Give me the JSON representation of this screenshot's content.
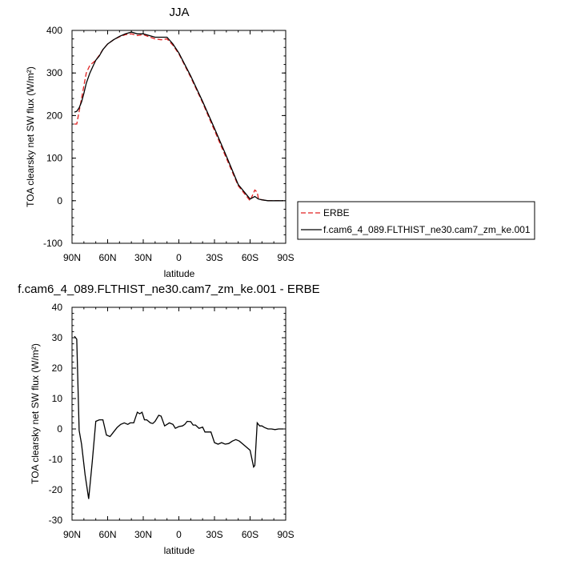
{
  "chart_data": [
    {
      "type": "line",
      "title": "JJA",
      "xlabel": "latitude",
      "ylabel": "TOA clearsky net SW flux (W/m²)",
      "xlim": [
        90,
        -90
      ],
      "ylim": [
        -100,
        400
      ],
      "xticks": [
        {
          "value": 90,
          "label": "90N"
        },
        {
          "value": 60,
          "label": "60N"
        },
        {
          "value": 30,
          "label": "30N"
        },
        {
          "value": 0,
          "label": "0"
        },
        {
          "value": -30,
          "label": "30S"
        },
        {
          "value": -60,
          "label": "60S"
        },
        {
          "value": -90,
          "label": "90S"
        }
      ],
      "yticks": [
        {
          "value": 400,
          "label": "400"
        },
        {
          "value": 300,
          "label": "300"
        },
        {
          "value": 200,
          "label": "200"
        },
        {
          "value": 100,
          "label": "100"
        },
        {
          "value": 0,
          "label": "0"
        },
        {
          "value": -100,
          "label": "-100"
        }
      ],
      "legend_position": "right",
      "series": [
        {
          "name": "ERBE",
          "color": "#e02020",
          "dash": "dashed",
          "x": [
            88,
            86,
            84,
            82,
            80,
            78,
            75,
            72,
            70,
            67,
            64,
            60,
            55,
            50,
            45,
            40,
            35,
            30,
            25,
            20,
            15,
            10,
            5,
            0,
            -10,
            -20,
            -30,
            -40,
            -50,
            -60,
            -64,
            -66,
            -67,
            -70,
            -75,
            -80,
            -85,
            -88
          ],
          "y": [
            180,
            180,
            210,
            240,
            270,
            300,
            318,
            325,
            330,
            342,
            355,
            368,
            378,
            385,
            390,
            392,
            388,
            390,
            385,
            380,
            378,
            380,
            365,
            345,
            290,
            230,
            165,
            100,
            35,
            0,
            25,
            20,
            5,
            2,
            0,
            0,
            0,
            0
          ]
        },
        {
          "name": "f.cam6_4_089.FLTHIST_ne30.cam7_zm_ke.001",
          "color": "#000000",
          "dash": "solid",
          "x": [
            88,
            86,
            84,
            82,
            80,
            78,
            75,
            72,
            70,
            67,
            64,
            60,
            55,
            50,
            45,
            40,
            35,
            30,
            25,
            20,
            15,
            10,
            5,
            0,
            -10,
            -20,
            -30,
            -40,
            -50,
            -60,
            -64,
            -66,
            -67,
            -70,
            -75,
            -80,
            -85,
            -88
          ],
          "y": [
            208,
            210,
            218,
            232,
            252,
            276,
            300,
            318,
            330,
            340,
            355,
            368,
            378,
            386,
            392,
            396,
            392,
            392,
            388,
            384,
            384,
            384,
            368,
            347,
            293,
            233,
            170,
            105,
            38,
            4,
            10,
            6,
            4,
            2,
            0,
            0,
            0,
            0
          ]
        }
      ]
    },
    {
      "type": "line",
      "title": "f.cam6_4_089.FLTHIST_ne30.cam7_zm_ke.001 - ERBE",
      "xlabel": "latitude",
      "ylabel": "TOA clearsky net SW flux (W/m²)",
      "xlim": [
        90,
        -90
      ],
      "ylim": [
        -30,
        40
      ],
      "xticks": [
        {
          "value": 90,
          "label": "90N"
        },
        {
          "value": 60,
          "label": "60N"
        },
        {
          "value": 30,
          "label": "30N"
        },
        {
          "value": 0,
          "label": "0"
        },
        {
          "value": -30,
          "label": "30S"
        },
        {
          "value": -60,
          "label": "60S"
        },
        {
          "value": -90,
          "label": "90S"
        }
      ],
      "yticks": [
        {
          "value": 40,
          "label": "40"
        },
        {
          "value": 30,
          "label": "30"
        },
        {
          "value": 20,
          "label": "20"
        },
        {
          "value": 10,
          "label": "10"
        },
        {
          "value": 0,
          "label": "0"
        },
        {
          "value": -10,
          "label": "-10"
        },
        {
          "value": -20,
          "label": "-20"
        },
        {
          "value": -30,
          "label": "-30"
        }
      ],
      "series": [
        {
          "color": "#000000",
          "dash": "solid",
          "x": [
            88,
            86,
            84,
            82,
            79,
            76,
            73,
            70,
            67,
            64,
            61,
            58,
            55,
            52,
            49,
            46,
            43,
            41,
            38,
            35,
            33,
            31,
            29,
            27,
            24,
            22,
            20,
            17,
            15,
            12,
            10,
            8,
            5,
            3,
            0,
            -3,
            -5,
            -7,
            -10,
            -12,
            -14,
            -17,
            -20,
            -22,
            -24,
            -27,
            -30,
            -33,
            -36,
            -39,
            -42,
            -45,
            -48,
            -51,
            -54,
            -57,
            -60,
            -63,
            -64,
            -66,
            -68,
            -70,
            -72,
            -75,
            -78,
            -81,
            -84,
            -87,
            -88
          ],
          "y": [
            30.5,
            29.5,
            -0.5,
            -5,
            -15,
            -23,
            -11,
            2.5,
            3,
            3,
            -2,
            -2.5,
            -1,
            0.5,
            1.5,
            2,
            1.5,
            2,
            2,
            5.5,
            5,
            5.5,
            3,
            3,
            2,
            1.8,
            2.5,
            4.5,
            4.2,
            1,
            1.5,
            2,
            1.5,
            0.2,
            0.8,
            1,
            1.5,
            2.5,
            2.4,
            1.3,
            1.3,
            0.2,
            0.6,
            -1,
            -1,
            -1,
            -4.5,
            -5,
            -4.5,
            -5,
            -4.8,
            -4,
            -3.5,
            -4,
            -5,
            -6,
            -7,
            -12.5,
            -12,
            2,
            1,
            1,
            0.5,
            0,
            0,
            -0.2,
            0,
            0,
            0
          ]
        }
      ]
    }
  ]
}
